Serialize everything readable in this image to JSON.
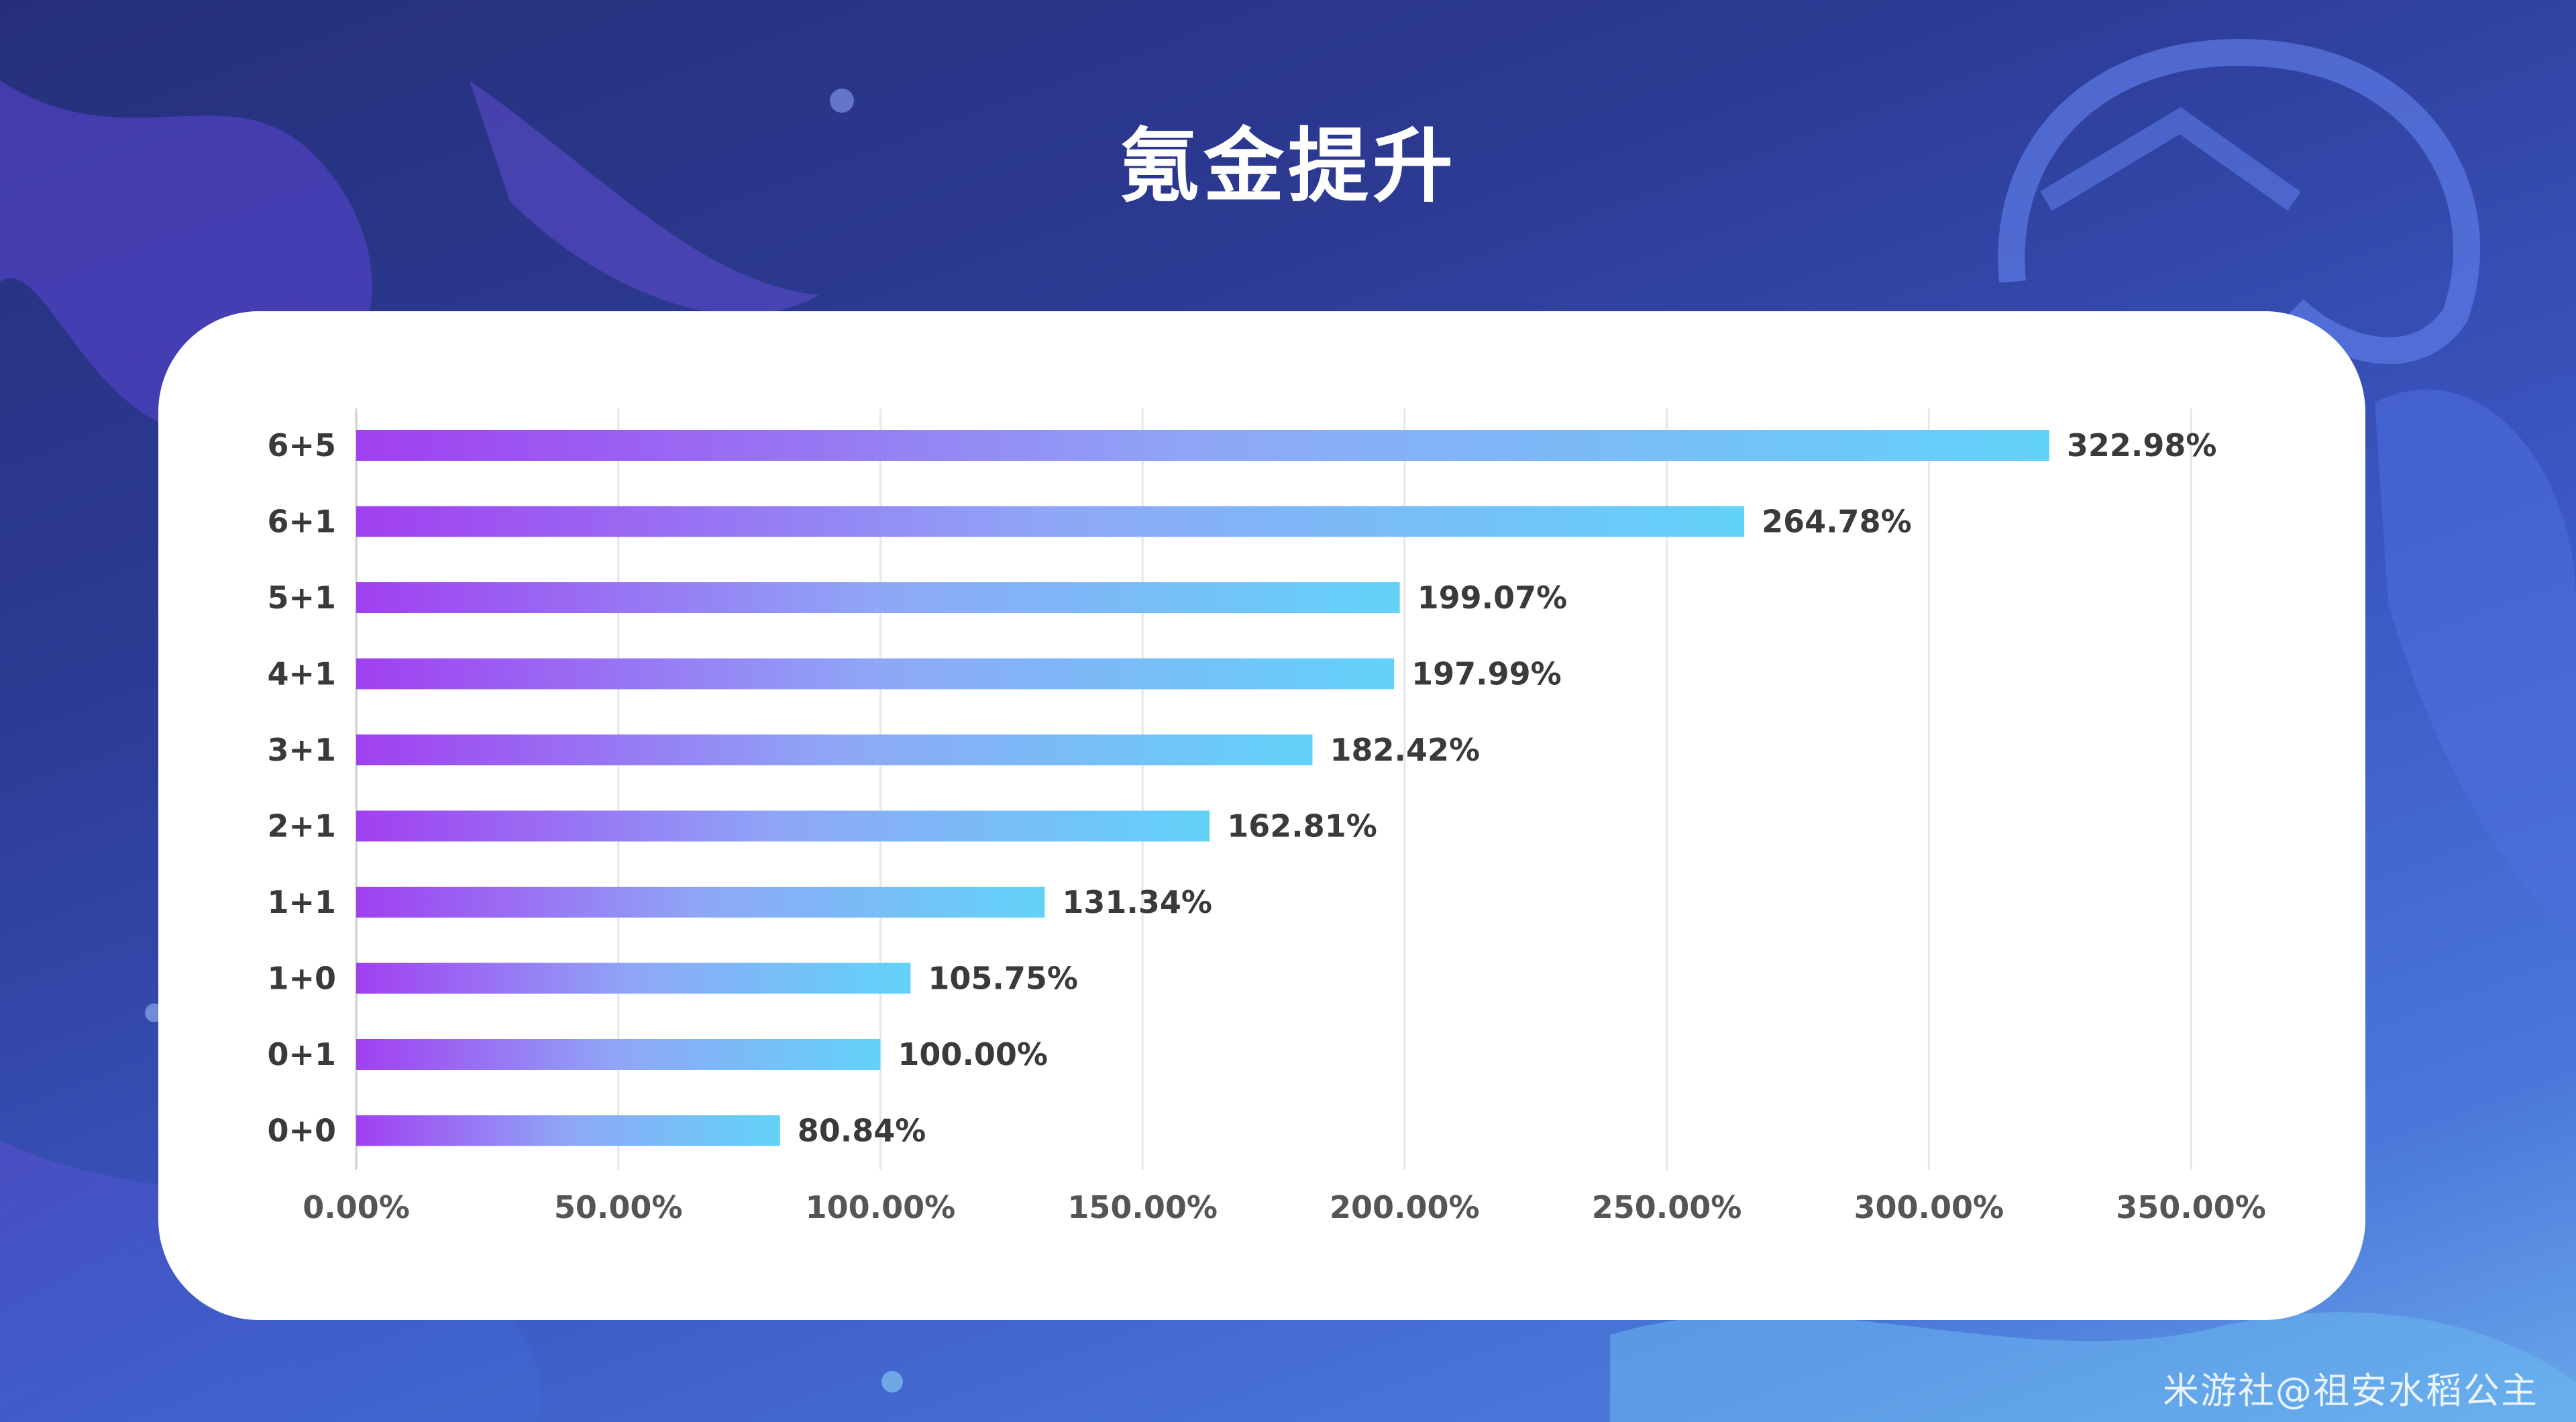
{
  "title": "氪金提升",
  "watermark": "米游社@祖安水稻公主",
  "colors": {
    "bar_start": "#a040f0",
    "bar_mid": "#8fa7f6",
    "bar_end": "#62d2f8",
    "grid": "#e6e6e6",
    "label": "#3a3a3a"
  },
  "chart_data": {
    "type": "bar",
    "orientation": "horizontal",
    "title": "氪金提升",
    "categories": [
      "6+5",
      "6+1",
      "5+1",
      "4+1",
      "3+1",
      "2+1",
      "1+1",
      "1+0",
      "0+1",
      "0+0"
    ],
    "values": [
      322.98,
      264.78,
      199.07,
      197.99,
      182.42,
      162.81,
      131.34,
      105.75,
      100.0,
      80.84
    ],
    "value_labels": [
      "322.98%",
      "264.78%",
      "199.07%",
      "197.99%",
      "182.42%",
      "162.81%",
      "131.34%",
      "105.75%",
      "100.00%",
      "80.84%"
    ],
    "xlim": [
      0,
      350
    ],
    "x_ticks": [
      0,
      50,
      100,
      150,
      200,
      250,
      300,
      350
    ],
    "x_tick_labels": [
      "0.00%",
      "50.00%",
      "100.00%",
      "150.00%",
      "200.00%",
      "250.00%",
      "300.00%",
      "350.00%"
    ],
    "xlabel": "",
    "ylabel": "",
    "grid": true,
    "legend": "none"
  }
}
